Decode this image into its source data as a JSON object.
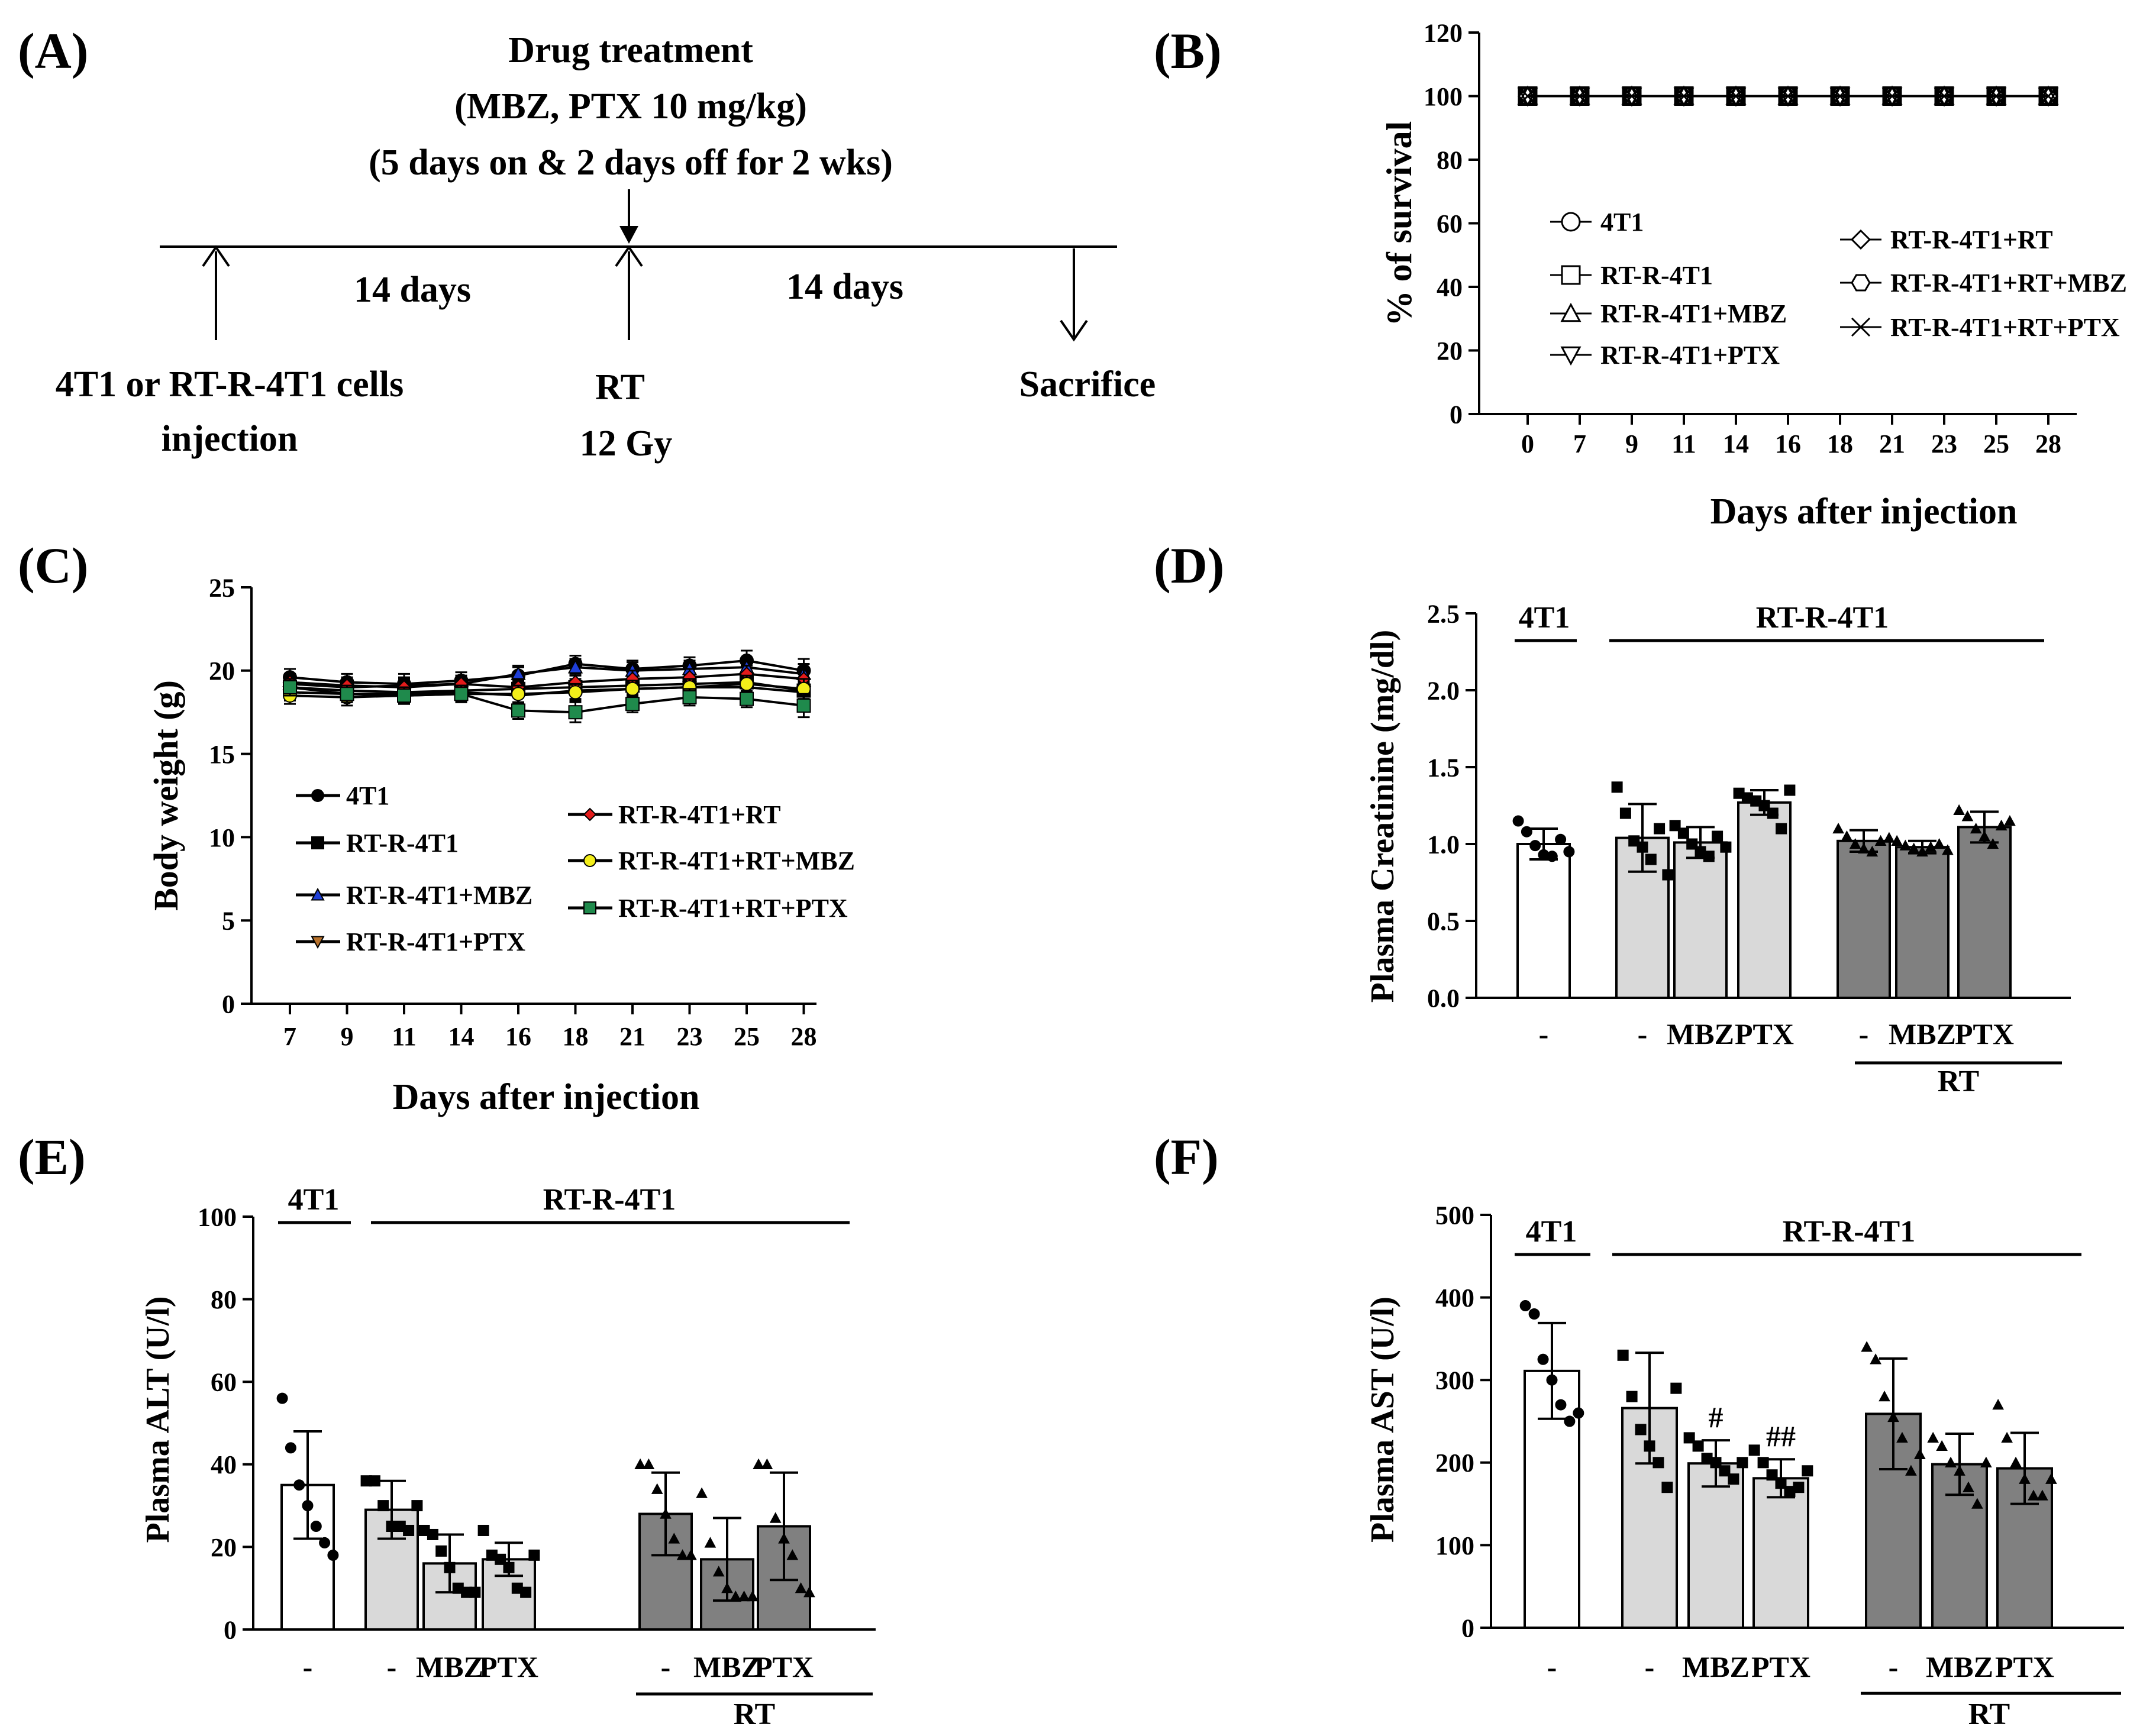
{
  "panels": {
    "A": {
      "label": "(A)",
      "drug_title": "Drug treatment",
      "drug_dose": "(MBZ, PTX  10 mg/kg)",
      "drug_schedule": "(5 days on & 2 days off for 2 wks)",
      "interval1": "14 days",
      "interval2": "14 days",
      "injection_line1": "4T1 or RT-R-4T1 cells",
      "injection_line2": "injection",
      "rt_line1": "RT",
      "rt_line2": "12 Gy",
      "sacrifice": "Sacrifice"
    },
    "B": {
      "label": "(B)"
    },
    "C": {
      "label": "(C)"
    },
    "D": {
      "label": "(D)"
    },
    "E": {
      "label": "(E)"
    },
    "F": {
      "label": "(F)"
    }
  },
  "chart_data": [
    {
      "id": "B",
      "type": "line",
      "title": "",
      "xlabel": "Days after injection",
      "ylabel": "% of survival",
      "categories": [
        "0",
        "7",
        "9",
        "11",
        "14",
        "16",
        "18",
        "21",
        "23",
        "25",
        "28"
      ],
      "ylim": [
        0,
        120
      ],
      "yticks": [
        0,
        20,
        40,
        60,
        80,
        100,
        120
      ],
      "legend": [
        "4T1",
        "RT-R-4T1",
        "RT-R-4T1+MBZ",
        "RT-R-4T1+PTX",
        "RT-R-4T1+RT",
        "RT-R-4T1+RT+MBZ",
        "RT-R-4T1+RT+PTX"
      ],
      "series": [
        {
          "name": "4T1",
          "marker": "circle",
          "values": [
            100,
            100,
            100,
            100,
            100,
            100,
            100,
            100,
            100,
            100,
            100
          ]
        },
        {
          "name": "RT-R-4T1",
          "marker": "square",
          "values": [
            100,
            100,
            100,
            100,
            100,
            100,
            100,
            100,
            100,
            100,
            100
          ]
        },
        {
          "name": "RT-R-4T1+MBZ",
          "marker": "triangle-up",
          "values": [
            100,
            100,
            100,
            100,
            100,
            100,
            100,
            100,
            100,
            100,
            100
          ]
        },
        {
          "name": "RT-R-4T1+PTX",
          "marker": "triangle-down",
          "values": [
            100,
            100,
            100,
            100,
            100,
            100,
            100,
            100,
            100,
            100,
            100
          ]
        },
        {
          "name": "RT-R-4T1+RT",
          "marker": "diamond",
          "values": [
            100,
            100,
            100,
            100,
            100,
            100,
            100,
            100,
            100,
            100,
            100
          ]
        },
        {
          "name": "RT-R-4T1+RT+MBZ",
          "marker": "hexagon",
          "values": [
            100,
            100,
            100,
            100,
            100,
            100,
            100,
            100,
            100,
            100,
            100
          ]
        },
        {
          "name": "RT-R-4T1+RT+PTX",
          "marker": "x",
          "values": [
            100,
            100,
            100,
            100,
            100,
            100,
            100,
            100,
            100,
            100,
            100
          ]
        }
      ]
    },
    {
      "id": "C",
      "type": "line",
      "title": "",
      "xlabel": "Days after injection",
      "ylabel": "Body weight (g)",
      "categories": [
        "7",
        "9",
        "11",
        "14",
        "16",
        "18",
        "21",
        "23",
        "25",
        "28"
      ],
      "ylim": [
        0,
        25
      ],
      "yticks": [
        0,
        5,
        10,
        15,
        20,
        25
      ],
      "series": [
        {
          "name": "4T1",
          "color": "#000000",
          "marker": "circle",
          "values": [
            19.6,
            19.3,
            19.2,
            19.4,
            19.7,
            20.4,
            20.1,
            20.3,
            20.6,
            20.0
          ],
          "errors": [
            0.5,
            0.5,
            0.6,
            0.5,
            0.5,
            0.5,
            0.5,
            0.5,
            0.6,
            0.7
          ]
        },
        {
          "name": "RT-R-4T1",
          "color": "#000000",
          "marker": "square",
          "values": [
            19.0,
            18.8,
            18.7,
            18.8,
            18.9,
            19.0,
            19.1,
            19.2,
            19.3,
            18.8
          ],
          "errors": [
            0.5,
            0.5,
            0.5,
            0.5,
            0.5,
            0.5,
            0.5,
            0.5,
            0.5,
            0.6
          ]
        },
        {
          "name": "RT-R-4T1+MBZ",
          "color": "#1f3fd8",
          "marker": "triangle-up",
          "values": [
            19.2,
            19.0,
            19.1,
            19.2,
            19.8,
            20.2,
            20.0,
            20.1,
            20.2,
            19.8
          ],
          "errors": [
            0.5,
            0.5,
            0.5,
            0.5,
            0.5,
            0.5,
            0.5,
            0.5,
            0.5,
            0.6
          ]
        },
        {
          "name": "RT-R-4T1+PTX",
          "color": "#b8722c",
          "marker": "triangle-down",
          "values": [
            18.7,
            18.6,
            18.6,
            18.7,
            18.5,
            18.8,
            18.9,
            19.0,
            19.0,
            18.7
          ],
          "errors": [
            0.5,
            0.5,
            0.5,
            0.5,
            0.5,
            0.5,
            0.5,
            0.5,
            0.5,
            0.6
          ]
        },
        {
          "name": "RT-R-4T1+RT",
          "color": "#e31b1b",
          "marker": "diamond",
          "values": [
            19.3,
            19.1,
            19.0,
            19.2,
            19.0,
            19.3,
            19.5,
            19.6,
            19.8,
            19.5
          ],
          "errors": [
            0.5,
            0.5,
            0.5,
            0.5,
            0.5,
            0.5,
            0.5,
            0.5,
            0.5,
            0.6
          ]
        },
        {
          "name": "RT-R-4T1+RT+MBZ",
          "color": "#f3ee1a",
          "marker": "circle",
          "values": [
            18.5,
            18.4,
            18.5,
            18.6,
            18.6,
            18.7,
            18.9,
            19.0,
            19.2,
            18.9
          ],
          "errors": [
            0.5,
            0.5,
            0.5,
            0.5,
            0.5,
            0.5,
            0.5,
            0.5,
            0.5,
            0.6
          ]
        },
        {
          "name": "RT-R-4T1+RT+PTX",
          "color": "#1f8a4c",
          "marker": "square",
          "values": [
            19.0,
            18.6,
            18.5,
            18.6,
            17.6,
            17.5,
            18.0,
            18.4,
            18.3,
            17.9
          ],
          "errors": [
            0.5,
            0.5,
            0.5,
            0.5,
            0.5,
            0.6,
            0.5,
            0.5,
            0.5,
            0.7
          ]
        }
      ]
    },
    {
      "id": "D",
      "type": "bar",
      "title": "",
      "ylabel": "Plasma  Creatinine  (mg/dl)",
      "ylim": [
        0,
        2.5
      ],
      "yticks": [
        "0.0",
        "0.5",
        "1.0",
        "1.5",
        "2.0",
        "2.5"
      ],
      "group_labels": {
        "left": "4T1",
        "right": "RT-R-4T1",
        "bottom": "RT"
      },
      "categories": [
        "-",
        "-",
        "MBZ",
        "PTX",
        "-",
        "MBZ",
        "PTX"
      ],
      "values": [
        1.0,
        1.04,
        1.01,
        1.27,
        1.02,
        0.98,
        1.11
      ],
      "errors": [
        0.1,
        0.22,
        0.1,
        0.08,
        0.07,
        0.04,
        0.1
      ],
      "colors": [
        "#ffffff",
        "#d9d9d9",
        "#d9d9d9",
        "#d9d9d9",
        "#808080",
        "#808080",
        "#808080"
      ],
      "markers": [
        "circle",
        "square",
        "square",
        "square",
        "triangle",
        "triangle",
        "triangle"
      ],
      "points": [
        [
          1.15,
          1.08,
          0.99,
          0.93,
          0.92,
          1.03,
          0.95
        ],
        [
          1.37,
          1.2,
          1.02,
          0.98,
          0.9,
          1.1,
          0.8
        ],
        [
          1.12,
          1.07,
          1.0,
          0.95,
          0.92,
          1.05,
          0.98
        ],
        [
          1.33,
          1.3,
          1.28,
          1.25,
          1.2,
          1.1,
          1.35
        ],
        [
          1.1,
          1.05,
          1.0,
          0.97,
          0.95,
          1.02,
          1.04
        ],
        [
          1.02,
          0.99,
          0.97,
          0.95,
          0.98,
          1.0,
          0.96
        ],
        [
          1.22,
          1.18,
          1.1,
          1.05,
          1.0,
          1.12,
          1.15
        ]
      ]
    },
    {
      "id": "E",
      "type": "bar",
      "title": "",
      "ylabel": "Plasma ALT  (U/l)",
      "ylim": [
        0,
        100
      ],
      "yticks": [
        "0",
        "20",
        "40",
        "60",
        "80",
        "100"
      ],
      "group_labels": {
        "left": "4T1",
        "right": "RT-R-4T1",
        "bottom": "RT"
      },
      "categories": [
        "-",
        "-",
        "MBZ",
        "PTX",
        "-",
        "MBZ",
        "PTX"
      ],
      "values": [
        35,
        29,
        16,
        17,
        28,
        17,
        25
      ],
      "errors": [
        13,
        7,
        7,
        4,
        10,
        10,
        13
      ],
      "colors": [
        "#ffffff",
        "#d9d9d9",
        "#d9d9d9",
        "#d9d9d9",
        "#808080",
        "#808080",
        "#808080"
      ],
      "markers": [
        "circle",
        "square",
        "square",
        "square",
        "triangle",
        "triangle",
        "triangle"
      ],
      "points": [
        [
          56,
          44,
          35,
          30,
          25,
          21,
          18
        ],
        [
          36,
          36,
          30,
          25,
          25,
          24,
          30
        ],
        [
          24,
          23,
          19,
          15,
          10,
          9,
          9
        ],
        [
          24,
          18,
          17,
          15,
          10,
          9,
          18
        ],
        [
          40,
          40,
          34,
          28,
          22,
          18,
          18
        ],
        [
          33,
          21,
          14,
          10,
          8,
          8,
          8
        ],
        [
          40,
          40,
          27,
          22,
          18,
          10,
          9
        ]
      ]
    },
    {
      "id": "F",
      "type": "bar",
      "title": "",
      "ylabel": "Plasma AST  (U/l)",
      "ylim": [
        0,
        500
      ],
      "yticks": [
        "0",
        "100",
        "200",
        "300",
        "400",
        "500"
      ],
      "group_labels": {
        "left": "4T1",
        "right": "RT-R-4T1",
        "bottom": "RT"
      },
      "categories": [
        "-",
        "-",
        "MBZ",
        "PTX",
        "-",
        "MBZ",
        "PTX"
      ],
      "values": [
        311,
        266,
        199,
        181,
        259,
        198,
        193
      ],
      "errors": [
        58,
        67,
        28,
        23,
        67,
        37,
        43
      ],
      "colors": [
        "#ffffff",
        "#d9d9d9",
        "#d9d9d9",
        "#d9d9d9",
        "#808080",
        "#808080",
        "#808080"
      ],
      "annotations": [
        "",
        "",
        "#",
        "##",
        "",
        "",
        ""
      ],
      "markers": [
        "circle",
        "square",
        "square",
        "square",
        "triangle",
        "triangle",
        "triangle"
      ],
      "points": [
        [
          390,
          380,
          325,
          300,
          270,
          250,
          260
        ],
        [
          330,
          280,
          240,
          220,
          200,
          170,
          290
        ],
        [
          230,
          220,
          205,
          200,
          190,
          180,
          200
        ],
        [
          215,
          200,
          185,
          175,
          165,
          170,
          190
        ],
        [
          340,
          325,
          280,
          255,
          230,
          190,
          210
        ],
        [
          230,
          220,
          200,
          190,
          170,
          150,
          200
        ],
        [
          270,
          230,
          200,
          180,
          160,
          160,
          180
        ]
      ]
    }
  ]
}
